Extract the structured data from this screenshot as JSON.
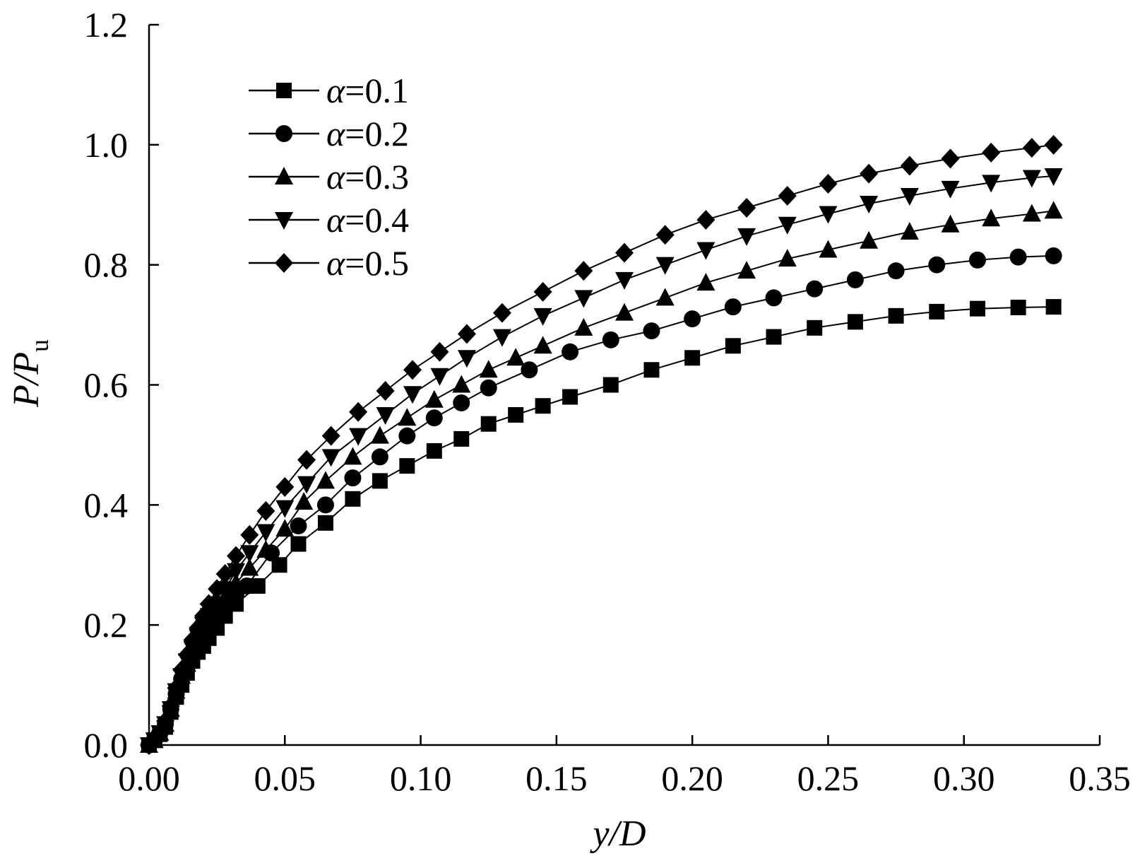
{
  "chart_data": {
    "type": "line",
    "title": "",
    "xlabel": {
      "main": "y/D"
    },
    "ylabel": {
      "main": "P/P",
      "sub": "u"
    },
    "xlim": [
      0,
      0.35
    ],
    "ylim": [
      0,
      1.2
    ],
    "xticks": [
      "0.00",
      "0.05",
      "0.10",
      "0.15",
      "0.20",
      "0.25",
      "0.30",
      "0.35"
    ],
    "yticks": [
      "0.0",
      "0.2",
      "0.4",
      "0.6",
      "0.8",
      "1.0",
      "1.2"
    ],
    "grid": false,
    "legend_position": "top-left",
    "series": [
      {
        "name": "α=0.1",
        "prefix": "α",
        "value_text": "=0.1",
        "marker": "square",
        "color": "#000000",
        "x": [
          0,
          0.002,
          0.004,
          0.006,
          0.008,
          0.01,
          0.012,
          0.014,
          0.016,
          0.018,
          0.02,
          0.022,
          0.025,
          0.028,
          0.032,
          0.04,
          0.048,
          0.055,
          0.065,
          0.075,
          0.085,
          0.095,
          0.105,
          0.115,
          0.125,
          0.135,
          0.145,
          0.155,
          0.17,
          0.185,
          0.2,
          0.215,
          0.23,
          0.245,
          0.26,
          0.275,
          0.29,
          0.305,
          0.32,
          0.333
        ],
        "y": [
          0,
          0.008,
          0.018,
          0.03,
          0.055,
          0.08,
          0.1,
          0.12,
          0.14,
          0.155,
          0.165,
          0.178,
          0.195,
          0.215,
          0.235,
          0.265,
          0.3,
          0.335,
          0.37,
          0.41,
          0.44,
          0.465,
          0.49,
          0.51,
          0.535,
          0.55,
          0.565,
          0.58,
          0.6,
          0.625,
          0.645,
          0.665,
          0.68,
          0.695,
          0.705,
          0.715,
          0.722,
          0.727,
          0.729,
          0.73
        ]
      },
      {
        "name": "α=0.2",
        "prefix": "α",
        "value_text": "=0.2",
        "marker": "circle",
        "color": "#000000",
        "x": [
          0,
          0.002,
          0.004,
          0.006,
          0.008,
          0.01,
          0.012,
          0.014,
          0.016,
          0.018,
          0.02,
          0.022,
          0.025,
          0.028,
          0.032,
          0.036,
          0.045,
          0.055,
          0.065,
          0.075,
          0.085,
          0.095,
          0.105,
          0.115,
          0.125,
          0.14,
          0.155,
          0.17,
          0.185,
          0.2,
          0.215,
          0.23,
          0.245,
          0.26,
          0.275,
          0.29,
          0.305,
          0.32,
          0.333
        ],
        "y": [
          0,
          0.008,
          0.02,
          0.035,
          0.06,
          0.085,
          0.11,
          0.13,
          0.15,
          0.165,
          0.18,
          0.195,
          0.215,
          0.235,
          0.25,
          0.265,
          0.32,
          0.365,
          0.4,
          0.445,
          0.48,
          0.515,
          0.545,
          0.57,
          0.595,
          0.625,
          0.655,
          0.675,
          0.69,
          0.71,
          0.73,
          0.745,
          0.76,
          0.775,
          0.79,
          0.8,
          0.808,
          0.813,
          0.815
        ]
      },
      {
        "name": "α=0.3",
        "prefix": "α",
        "value_text": "=0.3",
        "marker": "triangle-up",
        "color": "#000000",
        "x": [
          0,
          0.002,
          0.004,
          0.006,
          0.008,
          0.01,
          0.012,
          0.014,
          0.016,
          0.018,
          0.02,
          0.022,
          0.025,
          0.028,
          0.032,
          0.037,
          0.043,
          0.05,
          0.057,
          0.065,
          0.075,
          0.085,
          0.095,
          0.105,
          0.115,
          0.125,
          0.135,
          0.145,
          0.16,
          0.175,
          0.19,
          0.205,
          0.22,
          0.235,
          0.25,
          0.265,
          0.28,
          0.295,
          0.31,
          0.325,
          0.333
        ],
        "y": [
          0,
          0.008,
          0.02,
          0.035,
          0.06,
          0.09,
          0.115,
          0.135,
          0.155,
          0.175,
          0.19,
          0.205,
          0.225,
          0.245,
          0.27,
          0.295,
          0.325,
          0.36,
          0.405,
          0.44,
          0.48,
          0.515,
          0.545,
          0.575,
          0.6,
          0.625,
          0.645,
          0.665,
          0.695,
          0.72,
          0.745,
          0.77,
          0.79,
          0.81,
          0.825,
          0.84,
          0.855,
          0.867,
          0.877,
          0.885,
          0.89
        ]
      },
      {
        "name": "α=0.4",
        "prefix": "α",
        "value_text": "=0.4",
        "marker": "triangle-down",
        "color": "#000000",
        "x": [
          0,
          0.002,
          0.004,
          0.006,
          0.008,
          0.01,
          0.012,
          0.014,
          0.016,
          0.018,
          0.02,
          0.022,
          0.025,
          0.028,
          0.032,
          0.037,
          0.043,
          0.05,
          0.058,
          0.067,
          0.077,
          0.087,
          0.097,
          0.107,
          0.117,
          0.13,
          0.145,
          0.16,
          0.175,
          0.19,
          0.205,
          0.22,
          0.235,
          0.25,
          0.265,
          0.28,
          0.295,
          0.31,
          0.325,
          0.333
        ],
        "y": [
          0,
          0.008,
          0.02,
          0.035,
          0.06,
          0.09,
          0.115,
          0.14,
          0.16,
          0.18,
          0.2,
          0.215,
          0.235,
          0.26,
          0.29,
          0.32,
          0.355,
          0.395,
          0.435,
          0.48,
          0.515,
          0.55,
          0.585,
          0.615,
          0.645,
          0.68,
          0.715,
          0.745,
          0.775,
          0.8,
          0.825,
          0.848,
          0.867,
          0.885,
          0.902,
          0.915,
          0.927,
          0.937,
          0.945,
          0.948
        ]
      },
      {
        "name": "α=0.5",
        "prefix": "α",
        "value_text": "=0.5",
        "marker": "diamond",
        "color": "#000000",
        "x": [
          0,
          0.002,
          0.004,
          0.006,
          0.008,
          0.01,
          0.012,
          0.014,
          0.016,
          0.018,
          0.02,
          0.022,
          0.025,
          0.028,
          0.032,
          0.037,
          0.043,
          0.05,
          0.058,
          0.067,
          0.077,
          0.087,
          0.097,
          0.107,
          0.117,
          0.13,
          0.145,
          0.16,
          0.175,
          0.19,
          0.205,
          0.22,
          0.235,
          0.25,
          0.265,
          0.28,
          0.295,
          0.31,
          0.325,
          0.333
        ],
        "y": [
          0,
          0.01,
          0.022,
          0.04,
          0.065,
          0.095,
          0.125,
          0.15,
          0.175,
          0.195,
          0.215,
          0.235,
          0.26,
          0.285,
          0.315,
          0.35,
          0.39,
          0.43,
          0.475,
          0.515,
          0.555,
          0.59,
          0.625,
          0.655,
          0.685,
          0.72,
          0.755,
          0.79,
          0.82,
          0.85,
          0.875,
          0.895,
          0.915,
          0.935,
          0.952,
          0.965,
          0.977,
          0.987,
          0.995,
          1.0
        ]
      }
    ]
  }
}
